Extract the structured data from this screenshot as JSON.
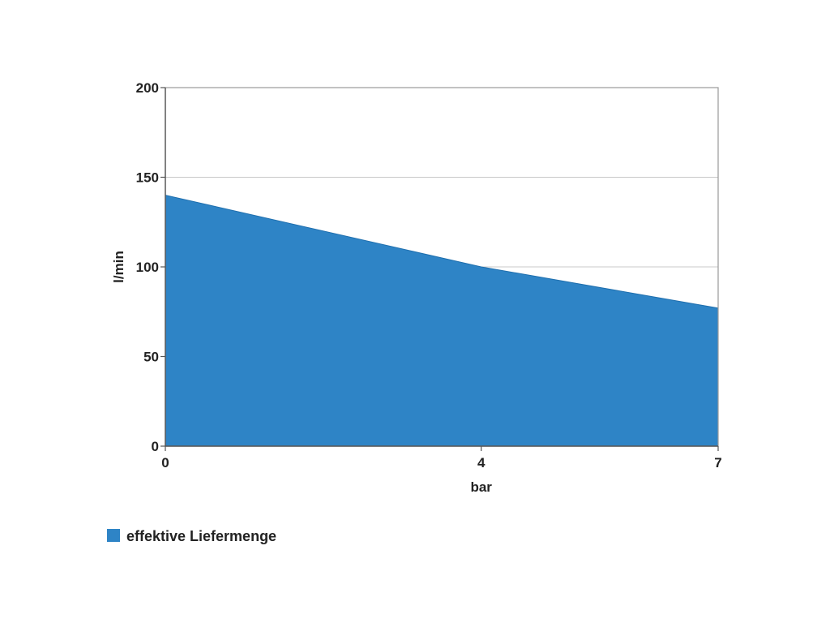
{
  "chart_data": {
    "type": "area",
    "x": [
      0,
      4,
      7
    ],
    "xticks": [
      0,
      4,
      7
    ],
    "xlim": [
      0,
      7
    ],
    "ylim": [
      0,
      200
    ],
    "yticks": [
      0,
      50,
      100,
      150,
      200
    ],
    "xlabel": "bar",
    "ylabel": "l/min",
    "grid": true,
    "legend_position": "bottom-left",
    "series": [
      {
        "name": "effektive Liefermenge",
        "values": [
          140,
          100,
          77
        ],
        "color": "#2e84c6"
      }
    ]
  }
}
